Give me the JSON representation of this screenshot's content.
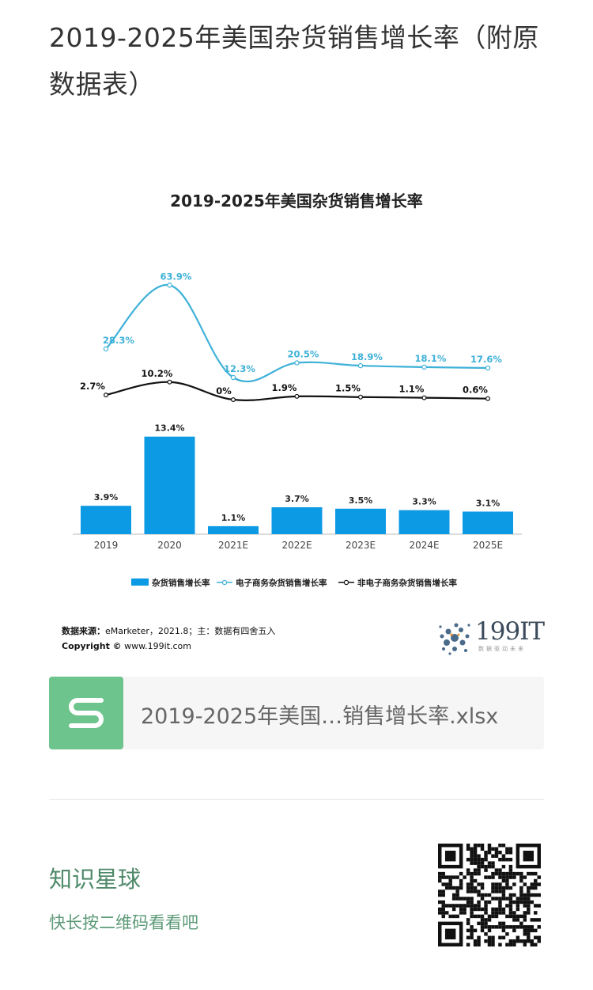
{
  "article": {
    "title": "2019-2025年美国杂货销售增长率（附原数据表）"
  },
  "chart_data": {
    "type": "bar+line",
    "title": "2019-2025年美国杂货销售增长率",
    "categories": [
      "2019",
      "2020",
      "2021E",
      "2022E",
      "2023E",
      "2024E",
      "2025E"
    ],
    "series": [
      {
        "name": "杂货销售增长率",
        "kind": "bar",
        "color": "#0d9ae4",
        "values": [
          3.9,
          13.4,
          1.1,
          3.7,
          3.5,
          3.3,
          3.1
        ],
        "labels": [
          "3.9%",
          "13.4%",
          "1.1%",
          "3.7%",
          "3.5%",
          "3.3%",
          "3.1%"
        ]
      },
      {
        "name": "电子商务杂货销售增长率",
        "kind": "line",
        "color": "#3fb1d8",
        "values": [
          28.3,
          63.9,
          12.3,
          20.5,
          18.9,
          18.1,
          17.6
        ],
        "labels": [
          "28.3%",
          "63.9%",
          "12.3%",
          "20.5%",
          "18.9%",
          "18.1%",
          "17.6%"
        ]
      },
      {
        "name": "非电子商务杂货销售增长率",
        "kind": "line",
        "color": "#111111",
        "values": [
          2.7,
          10.2,
          0,
          1.9,
          1.5,
          1.1,
          0.6
        ],
        "labels": [
          "2.7%",
          "10.2%",
          "0%",
          "1.9%",
          "1.5%",
          "1.1%",
          "0.6%"
        ]
      }
    ],
    "legend_position": "bottom",
    "grid": false
  },
  "source": {
    "label": "数据来源：",
    "text": "eMarketer，2021.8；主：数据有四舍五入",
    "copyright_label": "Copyright ©",
    "copyright_text": "www.199it.com"
  },
  "logo": {
    "text": "199IT",
    "sub": "数据驱动未来"
  },
  "file": {
    "name": "2019-2025年美国…销售增长率.xlsx",
    "icon": "spreadsheet-s-icon"
  },
  "promo": {
    "title": "知识星球",
    "subtitle": "快长按二维码看看吧",
    "qr_icon": "qr-code-icon"
  }
}
